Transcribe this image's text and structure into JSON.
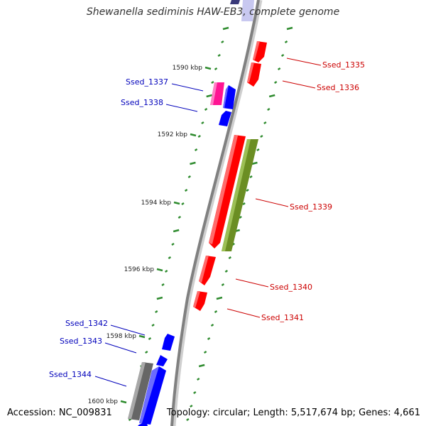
{
  "title": "Shewanella sediminis HAW-EB3, complete genome",
  "accession_text": "Accession: NC_009831",
  "summary_text": "Topology: circular; Length: 5,517,674 bp; Genes: 4,661",
  "colors": {
    "backbone": "#808080",
    "tick": "#2e8b2e",
    "forward_gene": "#ff0000",
    "reverse_gene": "#0000ff",
    "label_forward": "#cc0000",
    "label_reverse": "#0000bb",
    "olive_feature": "#6b8e23",
    "magenta_feature": "#ff1493",
    "gray_feature": "#777777"
  },
  "ruler": {
    "unit": "kbp",
    "labels": [
      {
        "position_kbp": 1590,
        "text": "1590 kbp"
      },
      {
        "position_kbp": 1592,
        "text": "1592 kbp"
      },
      {
        "position_kbp": 1594,
        "text": "1594 kbp"
      },
      {
        "position_kbp": 1596,
        "text": "1596 kbp"
      },
      {
        "position_kbp": 1598,
        "text": "1598 kbp"
      },
      {
        "position_kbp": 1600,
        "text": "1600 kbp"
      }
    ]
  },
  "genes": [
    {
      "label": "Ssed_1335",
      "strand": "forward"
    },
    {
      "label": "Ssed_1336",
      "strand": "forward"
    },
    {
      "label": "Ssed_1337",
      "strand": "reverse"
    },
    {
      "label": "Ssed_1338",
      "strand": "reverse"
    },
    {
      "label": "Ssed_1339",
      "strand": "forward"
    },
    {
      "label": "Ssed_1340",
      "strand": "forward"
    },
    {
      "label": "Ssed_1341",
      "strand": "forward"
    },
    {
      "label": "Ssed_1342",
      "strand": "reverse"
    },
    {
      "label": "Ssed_1343",
      "strand": "reverse"
    },
    {
      "label": "Ssed_1344",
      "strand": "reverse"
    }
  ]
}
